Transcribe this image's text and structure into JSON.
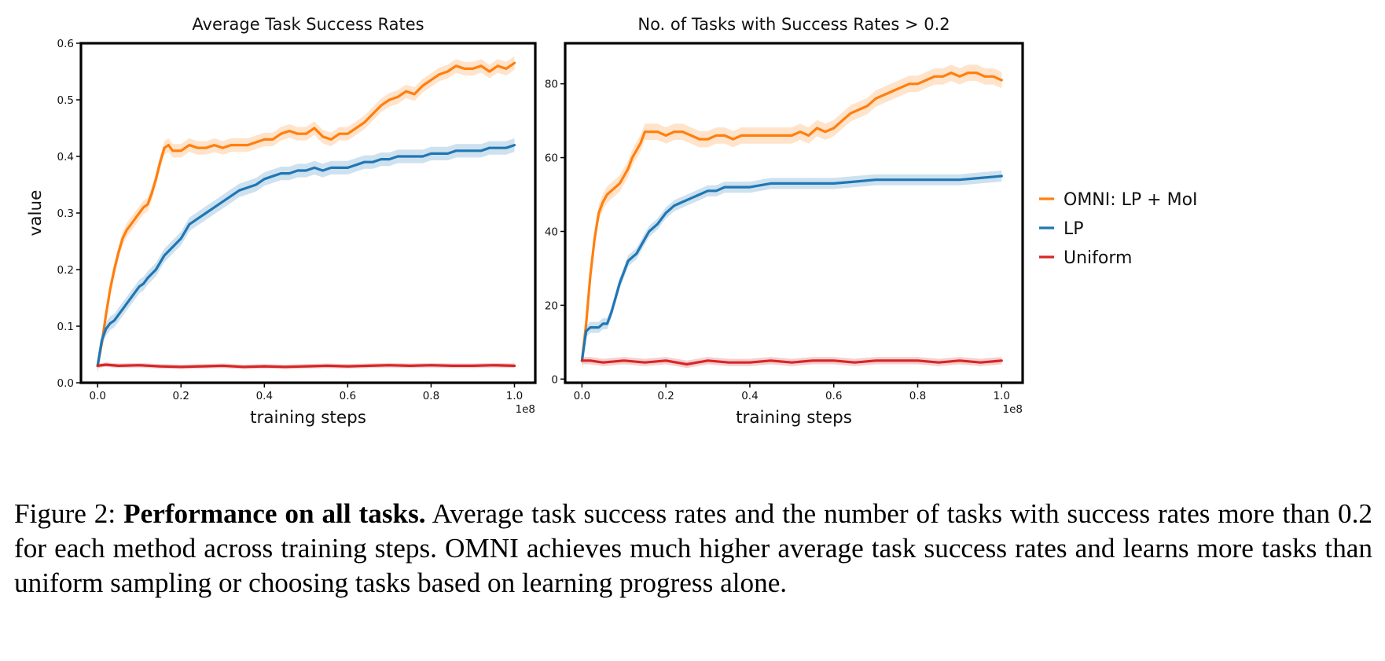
{
  "figure": {
    "caption_label": "Figure 2:",
    "caption_title": "Performance on all tasks.",
    "caption_body": "Average task success rates and the number of tasks with success rates more than 0.2 for each method across training steps. OMNI achieves much higher average task success rates and learns more tasks than uniform sampling or choosing tasks based on learning progress alone."
  },
  "legend": {
    "position": "right",
    "entries": [
      {
        "label": "OMNI: LP + MoI",
        "color": "#ff7f0e"
      },
      {
        "label": "LP",
        "color": "#1f77b4"
      },
      {
        "label": "Uniform",
        "color": "#d62728"
      }
    ]
  },
  "chart_data": [
    {
      "type": "line",
      "title": "Average Task Success Rates",
      "xlabel": "training steps",
      "ylabel": "value",
      "x_offset_label": "1e8",
      "xlim": [
        -0.04,
        1.05
      ],
      "ylim": [
        0,
        0.6
      ],
      "xticks": [
        0.0,
        0.2,
        0.4,
        0.6,
        0.8,
        1.0
      ],
      "xtick_labels": [
        "0.0",
        "0.2",
        "0.4",
        "0.6",
        "0.8",
        "1.0"
      ],
      "yticks": [
        0.0,
        0.1,
        0.2,
        0.3,
        0.4,
        0.5,
        0.6
      ],
      "ytick_labels": [
        "0.0",
        "0.1",
        "0.2",
        "0.3",
        "0.4",
        "0.5",
        "0.6"
      ],
      "grid": false,
      "shaded_band": true,
      "series": [
        {
          "name": "OMNI: LP + MoI",
          "color": "#ff7f0e",
          "band": 0.012,
          "x": [
            0,
            0.01,
            0.02,
            0.03,
            0.04,
            0.05,
            0.06,
            0.07,
            0.08,
            0.09,
            0.1,
            0.11,
            0.12,
            0.13,
            0.14,
            0.15,
            0.16,
            0.17,
            0.18,
            0.2,
            0.22,
            0.24,
            0.26,
            0.28,
            0.3,
            0.32,
            0.34,
            0.36,
            0.38,
            0.4,
            0.42,
            0.44,
            0.46,
            0.48,
            0.5,
            0.52,
            0.54,
            0.56,
            0.58,
            0.6,
            0.62,
            0.64,
            0.66,
            0.68,
            0.7,
            0.72,
            0.74,
            0.76,
            0.78,
            0.8,
            0.82,
            0.84,
            0.86,
            0.88,
            0.9,
            0.92,
            0.94,
            0.96,
            0.98,
            1.0
          ],
          "y": [
            0.03,
            0.07,
            0.12,
            0.165,
            0.2,
            0.23,
            0.255,
            0.27,
            0.28,
            0.29,
            0.3,
            0.31,
            0.315,
            0.335,
            0.36,
            0.39,
            0.415,
            0.42,
            0.41,
            0.41,
            0.42,
            0.415,
            0.415,
            0.42,
            0.415,
            0.42,
            0.42,
            0.42,
            0.425,
            0.43,
            0.43,
            0.44,
            0.445,
            0.44,
            0.44,
            0.45,
            0.435,
            0.43,
            0.44,
            0.44,
            0.45,
            0.46,
            0.475,
            0.49,
            0.5,
            0.505,
            0.515,
            0.51,
            0.525,
            0.535,
            0.545,
            0.55,
            0.56,
            0.555,
            0.555,
            0.56,
            0.55,
            0.56,
            0.555,
            0.565
          ]
        },
        {
          "name": "LP",
          "color": "#1f77b4",
          "band": 0.012,
          "x": [
            0,
            0.01,
            0.02,
            0.03,
            0.04,
            0.05,
            0.06,
            0.07,
            0.08,
            0.09,
            0.1,
            0.11,
            0.12,
            0.14,
            0.16,
            0.18,
            0.2,
            0.22,
            0.24,
            0.26,
            0.28,
            0.3,
            0.32,
            0.34,
            0.36,
            0.38,
            0.4,
            0.42,
            0.44,
            0.46,
            0.48,
            0.5,
            0.52,
            0.54,
            0.56,
            0.58,
            0.6,
            0.62,
            0.64,
            0.66,
            0.68,
            0.7,
            0.72,
            0.74,
            0.76,
            0.78,
            0.8,
            0.82,
            0.84,
            0.86,
            0.88,
            0.9,
            0.92,
            0.94,
            0.96,
            0.98,
            1.0
          ],
          "y": [
            0.03,
            0.075,
            0.095,
            0.105,
            0.11,
            0.12,
            0.13,
            0.14,
            0.15,
            0.16,
            0.17,
            0.175,
            0.185,
            0.2,
            0.225,
            0.24,
            0.255,
            0.28,
            0.29,
            0.3,
            0.31,
            0.32,
            0.33,
            0.34,
            0.345,
            0.35,
            0.36,
            0.365,
            0.37,
            0.37,
            0.375,
            0.375,
            0.38,
            0.375,
            0.38,
            0.38,
            0.38,
            0.385,
            0.39,
            0.39,
            0.395,
            0.395,
            0.4,
            0.4,
            0.4,
            0.4,
            0.405,
            0.405,
            0.405,
            0.41,
            0.41,
            0.41,
            0.41,
            0.415,
            0.415,
            0.415,
            0.42
          ]
        },
        {
          "name": "Uniform",
          "color": "#d62728",
          "band": 0.004,
          "x": [
            0,
            0.02,
            0.05,
            0.1,
            0.15,
            0.2,
            0.25,
            0.3,
            0.35,
            0.4,
            0.45,
            0.5,
            0.55,
            0.6,
            0.65,
            0.7,
            0.75,
            0.8,
            0.85,
            0.9,
            0.95,
            1.0
          ],
          "y": [
            0.03,
            0.032,
            0.03,
            0.031,
            0.029,
            0.028,
            0.029,
            0.03,
            0.028,
            0.029,
            0.028,
            0.029,
            0.03,
            0.029,
            0.03,
            0.031,
            0.03,
            0.031,
            0.03,
            0.03,
            0.031,
            0.03
          ]
        }
      ]
    },
    {
      "type": "line",
      "title": "No. of Tasks with Success Rates > 0.2",
      "xlabel": "training steps",
      "ylabel": "",
      "x_offset_label": "1e8",
      "xlim": [
        -0.04,
        1.05
      ],
      "ylim": [
        -1,
        91
      ],
      "xticks": [
        0.0,
        0.2,
        0.4,
        0.6,
        0.8,
        1.0
      ],
      "xtick_labels": [
        "0.0",
        "0.2",
        "0.4",
        "0.6",
        "0.8",
        "1.0"
      ],
      "yticks": [
        0,
        20,
        40,
        60,
        80
      ],
      "ytick_labels": [
        "0",
        "20",
        "40",
        "60",
        "80"
      ],
      "grid": false,
      "shaded_band": true,
      "series": [
        {
          "name": "OMNI: LP + MoI",
          "color": "#ff7f0e",
          "band": 2.2,
          "x": [
            0,
            0.01,
            0.02,
            0.03,
            0.04,
            0.05,
            0.06,
            0.07,
            0.08,
            0.09,
            0.1,
            0.11,
            0.12,
            0.13,
            0.14,
            0.15,
            0.16,
            0.18,
            0.2,
            0.22,
            0.24,
            0.26,
            0.28,
            0.3,
            0.32,
            0.34,
            0.36,
            0.38,
            0.4,
            0.42,
            0.44,
            0.46,
            0.48,
            0.5,
            0.52,
            0.54,
            0.56,
            0.58,
            0.6,
            0.62,
            0.64,
            0.66,
            0.68,
            0.7,
            0.72,
            0.74,
            0.76,
            0.78,
            0.8,
            0.82,
            0.84,
            0.86,
            0.88,
            0.9,
            0.92,
            0.94,
            0.96,
            0.98,
            1.0
          ],
          "y": [
            5,
            15,
            28,
            38,
            45,
            48,
            50,
            51,
            52,
            53,
            55,
            57,
            60,
            62,
            64,
            67,
            67,
            67,
            66,
            67,
            67,
            66,
            65,
            65,
            66,
            66,
            65,
            66,
            66,
            66,
            66,
            66,
            66,
            66,
            67,
            66,
            68,
            67,
            68,
            70,
            72,
            73,
            74,
            76,
            77,
            78,
            79,
            80,
            80,
            81,
            82,
            82,
            83,
            82,
            83,
            83,
            82,
            82,
            81
          ]
        },
        {
          "name": "LP",
          "color": "#1f77b4",
          "band": 1.5,
          "x": [
            0,
            0.01,
            0.02,
            0.03,
            0.04,
            0.05,
            0.06,
            0.07,
            0.08,
            0.09,
            0.1,
            0.11,
            0.12,
            0.13,
            0.14,
            0.15,
            0.16,
            0.18,
            0.2,
            0.22,
            0.24,
            0.26,
            0.28,
            0.3,
            0.32,
            0.34,
            0.36,
            0.38,
            0.4,
            0.45,
            0.5,
            0.55,
            0.6,
            0.65,
            0.7,
            0.75,
            0.8,
            0.85,
            0.9,
            0.95,
            1.0
          ],
          "y": [
            5,
            13,
            14,
            14,
            14,
            15,
            15,
            18,
            22,
            26,
            29,
            32,
            33,
            34,
            36,
            38,
            40,
            42,
            45,
            47,
            48,
            49,
            50,
            51,
            51,
            52,
            52,
            52,
            52,
            53,
            53,
            53,
            53,
            53.5,
            54,
            54,
            54,
            54,
            54,
            54.5,
            55
          ]
        },
        {
          "name": "Uniform",
          "color": "#d62728",
          "band": 1.0,
          "x": [
            0,
            0.02,
            0.05,
            0.1,
            0.15,
            0.2,
            0.25,
            0.3,
            0.35,
            0.4,
            0.45,
            0.5,
            0.55,
            0.6,
            0.65,
            0.7,
            0.75,
            0.8,
            0.85,
            0.9,
            0.95,
            1.0
          ],
          "y": [
            5,
            5,
            4.5,
            5,
            4.5,
            5,
            4,
            5,
            4.5,
            4.5,
            5,
            4.5,
            5,
            5,
            4.5,
            5,
            5,
            5,
            4.5,
            5,
            4.5,
            5
          ]
        }
      ]
    }
  ]
}
